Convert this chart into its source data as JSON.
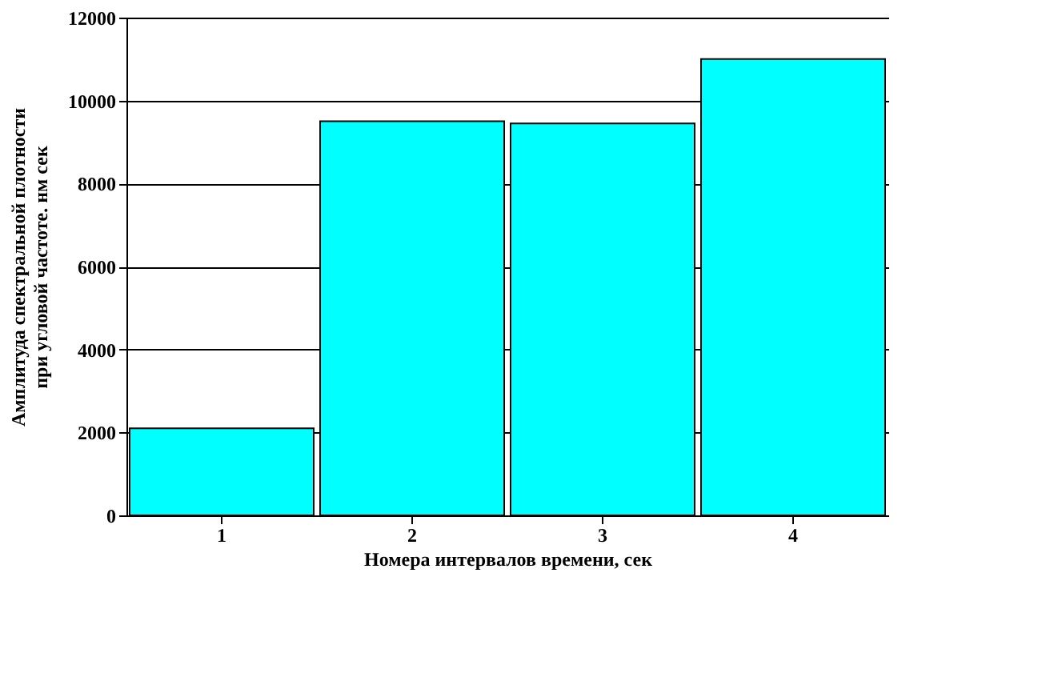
{
  "chart_data": {
    "type": "bar",
    "xlabel": "Номера интервалов времени, сек",
    "ylabel": "Амплитуда спектральной плотности\nпри угловой частоте. нм сек",
    "categories": [
      "1",
      "2",
      "3",
      "4"
    ],
    "values": [
      2100,
      9500,
      9450,
      11000
    ],
    "color": "#00ffff",
    "ylim": [
      0,
      12000
    ],
    "yticks": [
      0,
      2000,
      4000,
      6000,
      8000,
      10000,
      12000
    ],
    "grid": "y"
  }
}
